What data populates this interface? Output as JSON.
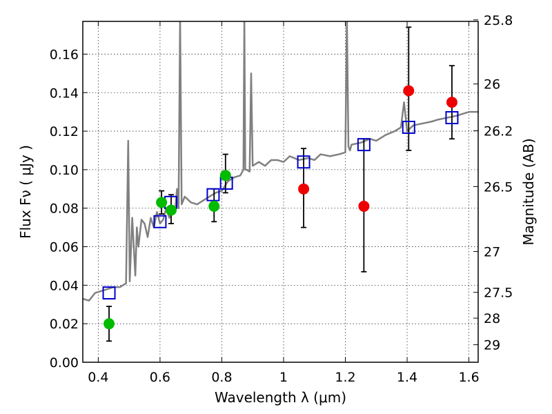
{
  "chart_data": {
    "type": "scatter",
    "xlabel": "Wavelength  λ (μm)",
    "ylabel": "Flux  Fν  ( μJy )",
    "ylabel_right": "Magnitude (AB)",
    "xlim": [
      0.35,
      1.63
    ],
    "ylim": [
      0.0,
      0.177
    ],
    "x_ticks": [
      0.4,
      0.6,
      0.8,
      1.0,
      1.2,
      1.4,
      1.6
    ],
    "x_tick_labels": [
      "0.4",
      "0.6",
      "0.8",
      "1",
      "1.2",
      "1.4",
      "1.6"
    ],
    "y_ticks": [
      0.0,
      0.02,
      0.04,
      0.06,
      0.08,
      0.1,
      0.12,
      0.14,
      0.16
    ],
    "y_tick_labels": [
      "0.00",
      "0.02",
      "0.04",
      "0.06",
      "0.08",
      "0.10",
      "0.12",
      "0.14",
      "0.16"
    ],
    "right_axis": {
      "labels": [
        "25.8",
        "26",
        "26.2",
        "26.5",
        "27",
        "27.5",
        "28",
        "29"
      ],
      "flux_positions": [
        0.1778,
        0.1445,
        0.1202,
        0.0912,
        0.0575,
        0.0363,
        0.0229,
        0.0091
      ]
    },
    "grid": true,
    "colors": {
      "model": "#808080",
      "model_points": "#0000cc",
      "green_points": "#00bb00",
      "red_points": "#ee0000",
      "errorbar": "#000000"
    },
    "series": [
      {
        "style": "line",
        "color": "#808080",
        "x": [
          0.35,
          0.37,
          0.39,
          0.41,
          0.43,
          0.45,
          0.47,
          0.49,
          0.497,
          0.502,
          0.51,
          0.52,
          0.525,
          0.53,
          0.54,
          0.55,
          0.56,
          0.57,
          0.58,
          0.59,
          0.6,
          0.61,
          0.62,
          0.63,
          0.64,
          0.65,
          0.655,
          0.66,
          0.665,
          0.67,
          0.68,
          0.7,
          0.72,
          0.74,
          0.76,
          0.78,
          0.8,
          0.82,
          0.84,
          0.86,
          0.87,
          0.873,
          0.876,
          0.88,
          0.89,
          0.895,
          0.9,
          0.92,
          0.94,
          0.96,
          0.98,
          1.0,
          1.02,
          1.05,
          1.08,
          1.1,
          1.12,
          1.15,
          1.18,
          1.2,
          1.205,
          1.21,
          1.215,
          1.22,
          1.25,
          1.28,
          1.3,
          1.33,
          1.36,
          1.38,
          1.39,
          1.4,
          1.42,
          1.45,
          1.48,
          1.5,
          1.53,
          1.56,
          1.6,
          1.63
        ],
        "y": [
          0.033,
          0.032,
          0.036,
          0.037,
          0.038,
          0.039,
          0.039,
          0.041,
          0.115,
          0.042,
          0.075,
          0.045,
          0.07,
          0.06,
          0.074,
          0.072,
          0.065,
          0.075,
          0.07,
          0.078,
          0.072,
          0.074,
          0.08,
          0.075,
          0.079,
          0.081,
          0.09,
          0.08,
          0.18,
          0.082,
          0.086,
          0.083,
          0.082,
          0.084,
          0.086,
          0.088,
          0.089,
          0.094,
          0.096,
          0.097,
          0.1,
          0.18,
          0.1,
          0.1,
          0.099,
          0.15,
          0.102,
          0.104,
          0.102,
          0.105,
          0.105,
          0.104,
          0.107,
          0.105,
          0.106,
          0.105,
          0.108,
          0.107,
          0.108,
          0.109,
          0.18,
          0.112,
          0.11,
          0.113,
          0.114,
          0.116,
          0.115,
          0.118,
          0.12,
          0.122,
          0.135,
          0.12,
          0.123,
          0.124,
          0.125,
          0.126,
          0.127,
          0.128,
          0.13,
          0.13
        ]
      },
      {
        "style": "open-square",
        "color": "#0000cc",
        "x": [
          0.435,
          0.6,
          0.635,
          0.772,
          0.815,
          1.065,
          1.26,
          1.405,
          1.545
        ],
        "y": [
          0.036,
          0.073,
          0.083,
          0.087,
          0.093,
          0.104,
          0.113,
          0.122,
          0.127
        ]
      },
      {
        "style": "filled-circle",
        "color": "#00bb00",
        "x": [
          0.435,
          0.605,
          0.636,
          0.775,
          0.812
        ],
        "y": [
          0.02,
          0.083,
          0.079,
          0.081,
          0.097
        ],
        "err_low": [
          0.011,
          0.077,
          0.072,
          0.073,
          0.088
        ],
        "err_high": [
          0.029,
          0.089,
          0.087,
          0.09,
          0.108
        ]
      },
      {
        "style": "filled-circle",
        "color": "#ee0000",
        "x": [
          1.065,
          1.26,
          1.405,
          1.545
        ],
        "y": [
          0.09,
          0.081,
          0.141,
          0.135
        ],
        "err_low": [
          0.07,
          0.047,
          0.11,
          0.116
        ],
        "err_high": [
          0.111,
          0.116,
          0.174,
          0.154
        ]
      }
    ]
  }
}
